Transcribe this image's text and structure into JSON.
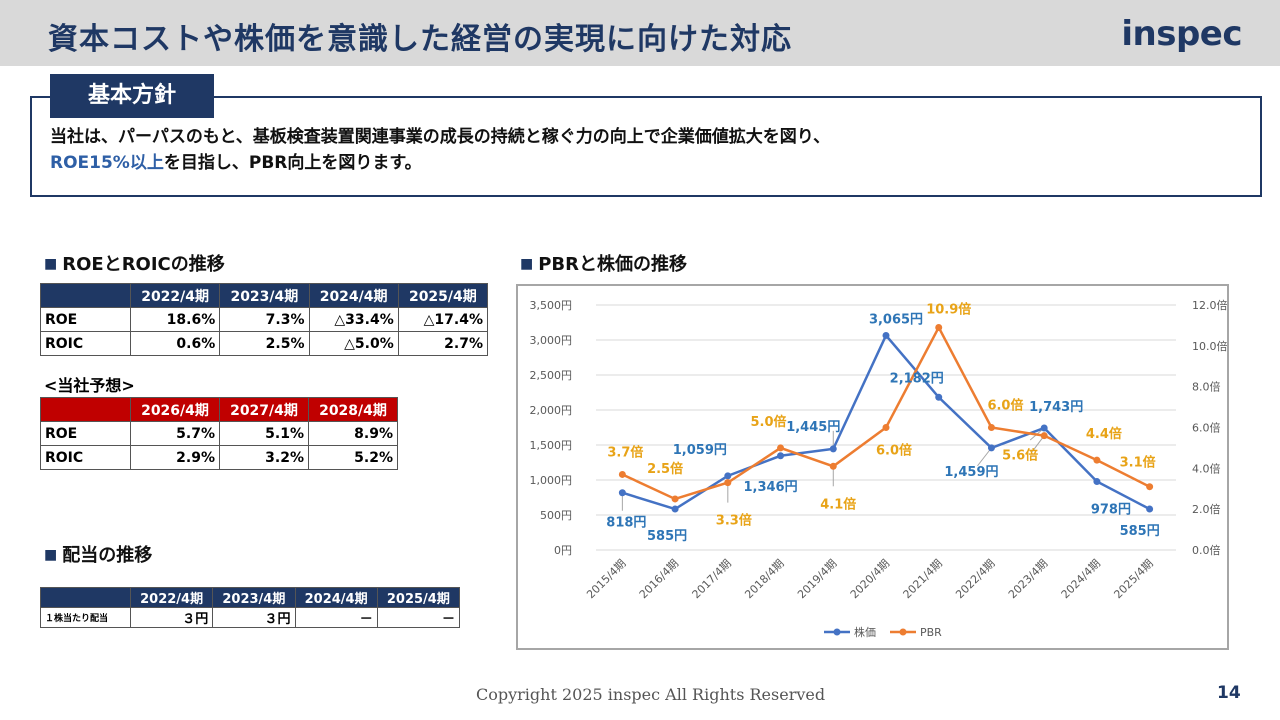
{
  "header": {
    "title": "資本コストや株価を意識した経営の実現に向けた対応",
    "logo": "inspec"
  },
  "policy": {
    "tab_label": "基本方針",
    "line1": "当社は、パーパスのもと、基板検査装置関連事業の成長の持続と稼ぐ力の向上で企業価値拡大を図り、",
    "line2_highlight": "ROE15%以上",
    "line2_rest": "を目指し、PBR向上を図ります。"
  },
  "roe_section": {
    "heading": "ROEとROICの推移",
    "columns": [
      "",
      "2022/4期",
      "2023/4期",
      "2024/4期",
      "2025/4期"
    ],
    "rows": [
      {
        "label": "ROE",
        "values": [
          "18.6%",
          "7.3%",
          "△33.4%",
          "△17.4%"
        ]
      },
      {
        "label": "ROIC",
        "values": [
          "0.6%",
          "2.5%",
          "△5.0%",
          "2.7%"
        ]
      }
    ]
  },
  "forecast_section": {
    "label": "<当社予想>",
    "columns": [
      "",
      "2026/4期",
      "2027/4期",
      "2028/4期"
    ],
    "rows": [
      {
        "label": "ROE",
        "values": [
          "5.7%",
          "5.1%",
          "8.9%"
        ]
      },
      {
        "label": "ROIC",
        "values": [
          "2.9%",
          "3.2%",
          "5.2%"
        ]
      }
    ]
  },
  "dividend_section": {
    "heading": "配当の推移",
    "columns": [
      "",
      "2022/4期",
      "2023/4期",
      "2024/4期",
      "2025/4期"
    ],
    "rows": [
      {
        "label": "１株当たり配当",
        "values": [
          "３円",
          "３円",
          "－",
          "－"
        ]
      }
    ]
  },
  "chart_heading": "PBRと株価の推移",
  "chart_data": {
    "type": "line",
    "title": "",
    "categories": [
      "2015/4期",
      "2016/4期",
      "2017/4期",
      "2018/4期",
      "2019/4期",
      "2020/4期",
      "2021/4期",
      "2022/4期",
      "2023/4期",
      "2024/4期",
      "2025/4期"
    ],
    "series": [
      {
        "name": "株価",
        "axis": "left",
        "color": "#4472c4",
        "values": [
          818,
          585,
          1059,
          1346,
          1445,
          3065,
          2182,
          1459,
          1743,
          978,
          585
        ],
        "labels": [
          "818円",
          "585円",
          "1,059円",
          "1,346円",
          "1,445円",
          "3,065円",
          "2,182円",
          "1,459円",
          "1,743円",
          "978円",
          "585円"
        ]
      },
      {
        "name": "PBR",
        "axis": "right",
        "color": "#ed7d31",
        "values": [
          3.7,
          2.5,
          3.3,
          5.0,
          4.1,
          6.0,
          10.9,
          6.0,
          5.6,
          4.4,
          3.1
        ],
        "labels": [
          "3.7倍",
          "2.5倍",
          "3.3倍",
          "5.0倍",
          "4.1倍",
          "6.0倍",
          "10.9倍",
          "6.0倍",
          "5.6倍",
          "4.4倍",
          "3.1倍"
        ]
      }
    ],
    "y_left": {
      "min": 0,
      "max": 3500,
      "ticks": [
        "0円",
        "500円",
        "1,000円",
        "1,500円",
        "2,000円",
        "2,500円",
        "3,000円",
        "3,500円"
      ]
    },
    "y_right": {
      "min": 0,
      "max": 12,
      "ticks": [
        "0.0倍",
        "2.0倍",
        "4.0倍",
        "6.0倍",
        "8.0倍",
        "10.0倍",
        "12.0倍"
      ]
    },
    "grid": true,
    "legend": "bottom",
    "label_colors": {
      "株価": "#2e75b6",
      "PBR": "#e8a317"
    }
  },
  "footer": {
    "copyright": "Copyright 2025 inspec All Rights Reserved",
    "page": "14"
  }
}
